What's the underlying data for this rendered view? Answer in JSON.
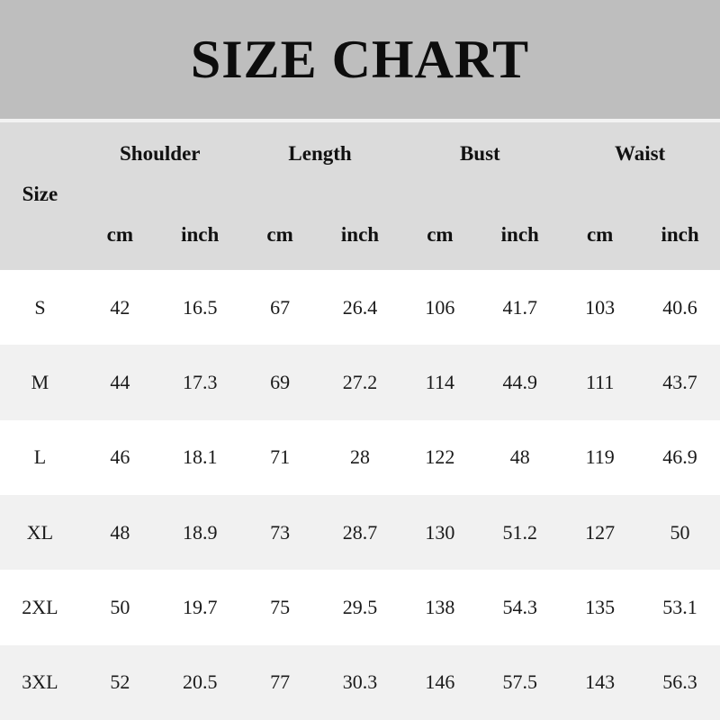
{
  "banner": {
    "title": "SIZE CHART"
  },
  "table": {
    "size_label": "Size",
    "groups": [
      "Shoulder",
      "Length",
      "Bust",
      "Waist"
    ],
    "unit_row": [
      "cm",
      "inch",
      "cm",
      "inch",
      "cm",
      "inch",
      "cm",
      "inch"
    ]
  },
  "colors": {
    "banner_bg": "#bebebe",
    "header_bg": "#dbdbdb",
    "row_bg": "#ffffff",
    "row_alt_bg": "#f1f1f1",
    "text": "#141414"
  },
  "chart_data": {
    "type": "table",
    "title": "SIZE CHART",
    "column_groups": [
      "Shoulder",
      "Length",
      "Bust",
      "Waist"
    ],
    "columns": [
      "Size",
      "Shoulder (cm)",
      "Shoulder (inch)",
      "Length (cm)",
      "Length (inch)",
      "Bust (cm)",
      "Bust (inch)",
      "Waist (cm)",
      "Waist (inch)"
    ],
    "rows": [
      {
        "size": "S",
        "values": [
          42,
          16.5,
          67,
          26.4,
          106,
          41.7,
          103,
          40.6
        ]
      },
      {
        "size": "M",
        "values": [
          44,
          17.3,
          69,
          27.2,
          114,
          44.9,
          111,
          43.7
        ]
      },
      {
        "size": "L",
        "values": [
          46,
          18.1,
          71,
          28,
          122,
          48,
          119,
          46.9
        ]
      },
      {
        "size": "XL",
        "values": [
          48,
          18.9,
          73,
          28.7,
          130,
          51.2,
          127,
          50
        ]
      },
      {
        "size": "2XL",
        "values": [
          50,
          19.7,
          75,
          29.5,
          138,
          54.3,
          135,
          53.1
        ]
      },
      {
        "size": "3XL",
        "values": [
          52,
          20.5,
          77,
          30.3,
          146,
          57.5,
          143,
          56.3
        ]
      }
    ]
  }
}
